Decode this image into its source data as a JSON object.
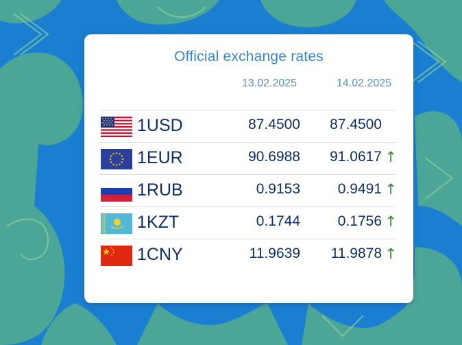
{
  "card": {
    "title": "Official exchange rates",
    "date_prev": "13.02.2025",
    "date_curr": "14.02.2025"
  },
  "rates": [
    {
      "code": "1USD",
      "prev": "87.4500",
      "curr": "87.4500",
      "trend": "",
      "flag": "usa-flag-icon"
    },
    {
      "code": "1EUR",
      "prev": "90.6988",
      "curr": "91.0617",
      "trend": "↑",
      "flag": "eu-flag-icon"
    },
    {
      "code": "1RUB",
      "prev": "0.9153",
      "curr": "0.9491",
      "trend": "↑",
      "flag": "russia-flag-icon"
    },
    {
      "code": "1KZT",
      "prev": "0.1744",
      "curr": "0.1756",
      "trend": "↑",
      "flag": "kazakhstan-flag-icon"
    },
    {
      "code": "1CNY",
      "prev": "11.9639",
      "curr": "11.9878",
      "trend": "↑",
      "flag": "china-flag-icon"
    }
  ],
  "colors": {
    "background": "#1a7fd1",
    "ornament": "#5bb08f",
    "title": "#3a86c4",
    "text": "#0f2e63",
    "trend_up": "#2f8a2f"
  }
}
